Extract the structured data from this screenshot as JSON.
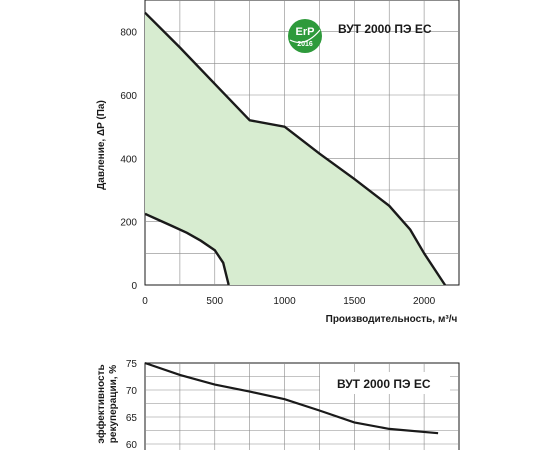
{
  "chart_data": [
    {
      "type": "area",
      "title": "ВУТ 2000 ПЭ ЕС",
      "xlabel": "Производительность,",
      "xunit": "м³/ч",
      "ylabel": "Давление, ΔP (Па)",
      "xlim": [
        0,
        2250
      ],
      "ylim": [
        0,
        900
      ],
      "x_ticks": [
        "0",
        "500",
        "1000",
        "1500",
        "2000"
      ],
      "y_ticks": [
        "0",
        "200",
        "400",
        "600",
        "800"
      ],
      "grid": true,
      "fill_color": "#d7ecd0",
      "line_color": "#1a1a1a",
      "series": [
        {
          "x": [
            0,
            250,
            500,
            750,
            1000,
            1250,
            1500,
            1750,
            1900,
            2000,
            2150
          ],
          "y": [
            860,
            750,
            635,
            520,
            500,
            415,
            335,
            250,
            175,
            100,
            0
          ]
        },
        {
          "x": [
            0,
            100,
            200,
            300,
            400,
            500,
            560,
            600
          ],
          "y": [
            225,
            205,
            185,
            165,
            140,
            110,
            70,
            0
          ]
        }
      ],
      "badge": {
        "line1": "ErP",
        "line2": "2016",
        "color": "#2e9a3b"
      }
    },
    {
      "type": "line",
      "title": "ВУТ 2000 ПЭ ЕС",
      "ylabel_line1": "эффективность",
      "ylabel_line2": "рекуперации, %",
      "ylim": [
        60,
        75
      ],
      "y_ticks": [
        "60",
        "65",
        "70",
        "75"
      ],
      "grid": true,
      "line_color": "#1a1a1a",
      "series": [
        {
          "x": [
            0,
            250,
            500,
            750,
            1000,
            1250,
            1500,
            1750,
            2100
          ],
          "y": [
            75,
            72.8,
            71.0,
            69.7,
            68.3,
            66.2,
            64.0,
            62.8,
            62
          ]
        }
      ]
    }
  ]
}
